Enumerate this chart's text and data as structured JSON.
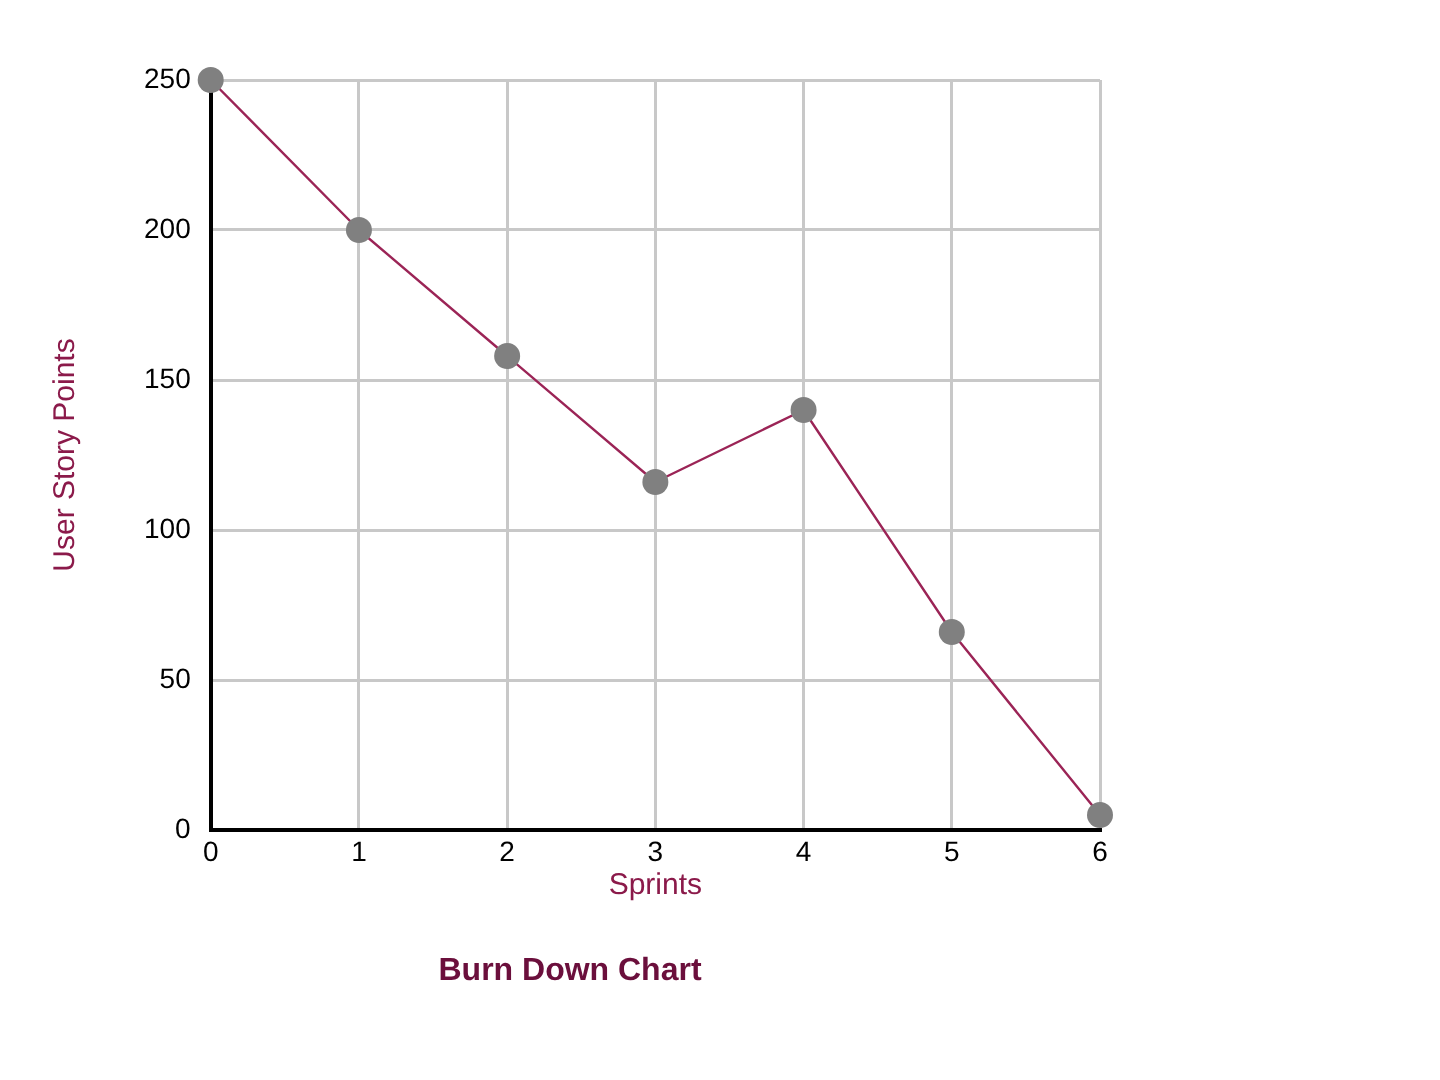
{
  "chart_data": {
    "type": "line",
    "title": "Burn Down Chart",
    "xlabel": "Sprints",
    "ylabel": "User Story Points",
    "x": [
      0,
      1,
      2,
      3,
      4,
      5,
      6
    ],
    "series": [
      {
        "color": "#9b2456",
        "values": [
          250,
          200,
          158,
          116,
          140,
          66,
          5
        ]
      }
    ],
    "xlim": [
      0,
      6
    ],
    "xticks": [
      0,
      1,
      2,
      3,
      4,
      5,
      6
    ],
    "ylim": [
      0,
      250
    ],
    "yticks": [
      0,
      50,
      100,
      150,
      200,
      250
    ],
    "grid": true,
    "legend": false,
    "marker": "circle",
    "line_style": "solid"
  }
}
